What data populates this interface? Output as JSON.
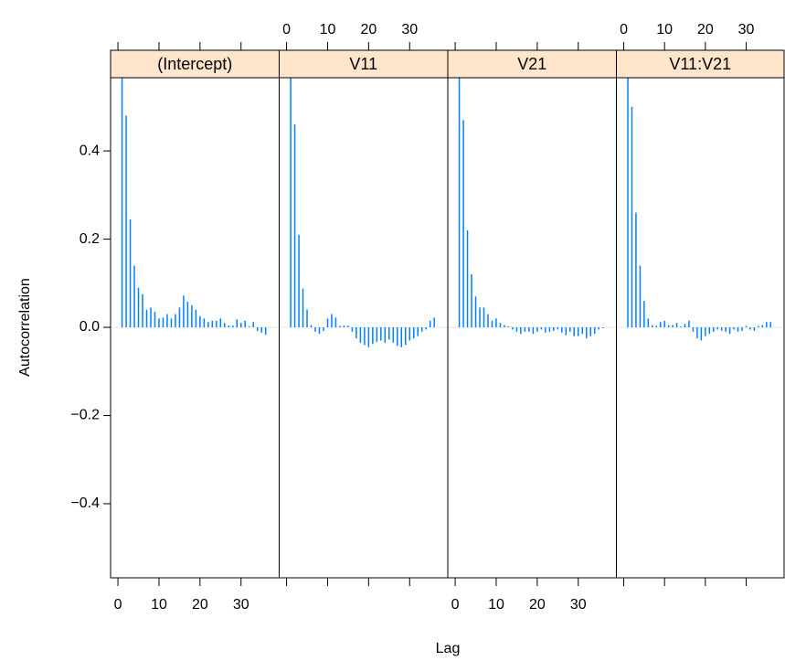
{
  "xlabel": "Lag",
  "ylabel": "Autocorrelation",
  "ylim": [
    -0.568,
    0.566
  ],
  "yticks": [
    {
      "value": -0.4,
      "label": "−0.4"
    },
    {
      "value": -0.2,
      "label": "−0.2"
    },
    {
      "value": 0,
      "label": "0.0"
    },
    0.2,
    0.4
  ],
  "chart_data": [
    {
      "type": "bar",
      "title": "(Intercept)",
      "color": "#0080ff",
      "xlim": [
        -1.8,
        39.3
      ],
      "xticks": [
        0,
        10,
        20,
        30
      ],
      "xtick_side": "bottom",
      "x": [
        1,
        2,
        3,
        4,
        5,
        6,
        7,
        8,
        9,
        10,
        11,
        12,
        13,
        14,
        15,
        16,
        17,
        18,
        19,
        20,
        21,
        22,
        23,
        24,
        25,
        26,
        27,
        28,
        29,
        30,
        31,
        32,
        33,
        34,
        35,
        36
      ],
      "values": [
        0.6,
        0.48,
        0.245,
        0.14,
        0.09,
        0.075,
        0.04,
        0.045,
        0.035,
        0.02,
        0.022,
        0.03,
        0.02,
        0.03,
        0.045,
        0.072,
        0.058,
        0.05,
        0.04,
        0.025,
        0.02,
        0.012,
        0.015,
        0.015,
        0.02,
        0.01,
        0.004,
        0.004,
        0.018,
        0.01,
        0.015,
        0.002,
        0.012,
        -0.008,
        -0.012,
        -0.017
      ]
    },
    {
      "type": "bar",
      "title": "V11",
      "color": "#0080ff",
      "xlim": [
        -1.8,
        39.3
      ],
      "xticks": [
        0,
        10,
        20,
        30
      ],
      "xtick_side": "top",
      "x": [
        1,
        2,
        3,
        4,
        5,
        6,
        7,
        8,
        9,
        10,
        11,
        12,
        13,
        14,
        15,
        16,
        17,
        18,
        19,
        20,
        21,
        22,
        23,
        24,
        25,
        26,
        27,
        28,
        29,
        30,
        31,
        32,
        33,
        34,
        35,
        36
      ],
      "values": [
        0.6,
        0.46,
        0.21,
        0.088,
        0.04,
        0.005,
        -0.01,
        -0.015,
        -0.008,
        0.02,
        0.03,
        0.022,
        0.003,
        0.004,
        0.004,
        -0.01,
        -0.025,
        -0.035,
        -0.04,
        -0.045,
        -0.038,
        -0.033,
        -0.03,
        -0.035,
        -0.028,
        -0.035,
        -0.042,
        -0.045,
        -0.04,
        -0.03,
        -0.025,
        -0.02,
        -0.01,
        -0.005,
        0.015,
        0.022
      ]
    },
    {
      "type": "bar",
      "title": "V21",
      "color": "#0080ff",
      "xlim": [
        -1.8,
        39.3
      ],
      "xticks": [
        0,
        10,
        20,
        30
      ],
      "xtick_side": "bottom",
      "x": [
        1,
        2,
        3,
        4,
        5,
        6,
        7,
        8,
        9,
        10,
        11,
        12,
        13,
        14,
        15,
        16,
        17,
        18,
        19,
        20,
        21,
        22,
        23,
        24,
        25,
        26,
        27,
        28,
        29,
        30,
        31,
        32,
        33,
        34,
        35,
        36
      ],
      "values": [
        0.6,
        0.47,
        0.22,
        0.12,
        0.07,
        0.045,
        0.045,
        0.03,
        0.015,
        0.02,
        0.01,
        0.005,
        0.002,
        -0.005,
        -0.01,
        -0.015,
        -0.01,
        -0.01,
        -0.015,
        -0.01,
        -0.005,
        -0.012,
        -0.01,
        -0.008,
        -0.005,
        -0.012,
        -0.018,
        -0.01,
        -0.02,
        -0.02,
        -0.015,
        -0.025,
        -0.02,
        -0.015,
        -0.005,
        -0.002
      ]
    },
    {
      "type": "bar",
      "title": "V11:V21",
      "color": "#0080ff",
      "xlim": [
        -1.8,
        39.3
      ],
      "xticks": [
        0,
        10,
        20,
        30
      ],
      "xtick_side": "top",
      "x": [
        1,
        2,
        3,
        4,
        5,
        6,
        7,
        8,
        9,
        10,
        11,
        12,
        13,
        14,
        15,
        16,
        17,
        18,
        19,
        20,
        21,
        22,
        23,
        24,
        25,
        26,
        27,
        28,
        29,
        30,
        31,
        32,
        33,
        34,
        35,
        36
      ],
      "values": [
        0.6,
        0.5,
        0.26,
        0.14,
        0.06,
        0.02,
        0.005,
        0.003,
        0.012,
        0.015,
        0.005,
        0.005,
        0.01,
        0.002,
        0.008,
        0.015,
        -0.01,
        -0.025,
        -0.03,
        -0.02,
        -0.015,
        -0.01,
        -0.005,
        -0.008,
        -0.01,
        -0.015,
        -0.005,
        -0.01,
        -0.008,
        0.003,
        -0.005,
        -0.008,
        0.003,
        0.005,
        0.012,
        0.012
      ]
    }
  ]
}
